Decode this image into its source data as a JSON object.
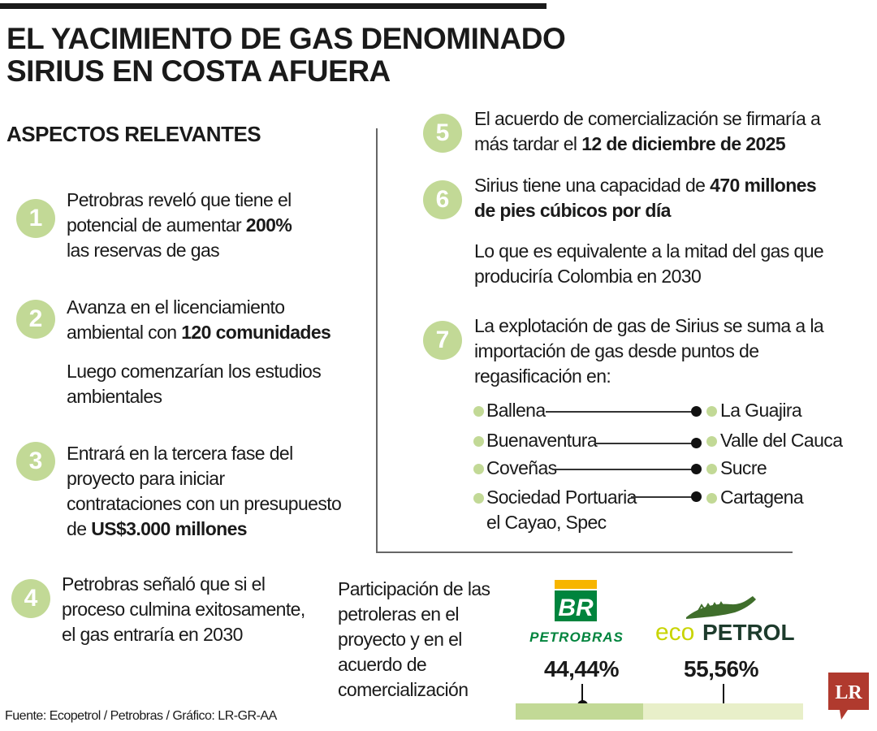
{
  "header": {
    "title_line1": "EL YACIMIENTO DE GAS DENOMINADO",
    "title_line2": "SIRIUS EN COSTA AFUERA",
    "subhead": "ASPECTOS RELEVANTES"
  },
  "items": {
    "i1": {
      "num": "1",
      "l1": "Petrobras reveló que tiene el",
      "l2a": "potencial de aumentar ",
      "l2b": "200%",
      "l3": "las reservas de gas"
    },
    "i2": {
      "num": "2",
      "l1": "Avanza en el licenciamiento",
      "l2a": "ambiental con ",
      "l2b": "120 comunidades",
      "n1": "Luego comenzarían los estudios",
      "n2": "ambientales"
    },
    "i3": {
      "num": "3",
      "l1": "Entrará en la tercera fase del",
      "l2": "proyecto para iniciar",
      "l3": "contrataciones con un presupuesto",
      "l4a": "de ",
      "l4b": "US$3.000 millones"
    },
    "i4": {
      "num": "4",
      "l1": "Petrobras señaló que si el",
      "l2": "proceso culmina exitosamente,",
      "l3": "el gas entraría en 2030"
    },
    "i5": {
      "num": "5",
      "l1": "El acuerdo de comercialización se firmaría a",
      "l2a": "más tardar el ",
      "l2b": "12 de diciembre de 2025"
    },
    "i6": {
      "num": "6",
      "l1a": "Sirius tiene una capacidad de ",
      "l1b": "470 millones",
      "l2": "de pies cúbicos por día",
      "n1": "Lo que es equivalente a la mitad del gas que",
      "n2": "produciría Colombia en 2030"
    },
    "i7": {
      "num": "7",
      "l1": "La explotación de gas de Sirius se suma a la",
      "l2": "importación de gas desde puntos de",
      "l3": "regasificación en:"
    }
  },
  "points": [
    {
      "place": "Ballena",
      "region": "La Guajira"
    },
    {
      "place": "Buenaventura",
      "region": "Valle del Cauca"
    },
    {
      "place": "Coveñas",
      "region": "Sucre"
    },
    {
      "place": "Sociedad Portuaria",
      "place2": "el Cayao, Spec",
      "region": "Cartagena"
    }
  ],
  "share": {
    "t1": "Participación de las",
    "t2": "petroleras en el",
    "t3": "proyecto y en el",
    "t4": "acuerdo de",
    "t5": "comercialización",
    "petrobras_logo_text": "BR",
    "petrobras_name": "PETROBRAS",
    "ecopetrol_name_a": "eco",
    "ecopetrol_name_b": "PETROL",
    "petrobras_pct": "44,44%",
    "ecopetrol_pct": "55,56%",
    "petrobras_value": 44.44,
    "ecopetrol_value": 55.56
  },
  "colors": {
    "accent_green": "#c2d996",
    "light_green": "#e8efc9",
    "petrobras_green": "#00843d",
    "petrobras_yellow": "#f7b500",
    "lr_red": "#b03a2e"
  },
  "footer": {
    "source": "Fuente: Ecopetrol / Petrobras / Gráfico: LR-GR-AA",
    "brand": "LR"
  }
}
